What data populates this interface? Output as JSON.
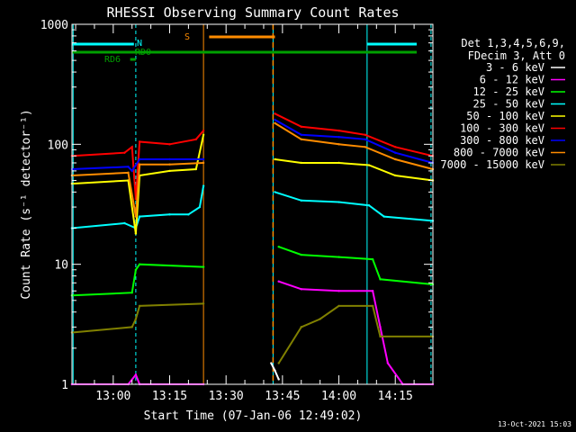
{
  "chart_data": {
    "type": "line",
    "title": "RHESSI Observing Summary Count Rates",
    "xlabel": "Start Time (07-Jan-06 12:49:02)",
    "ylabel": "Count Rate (s⁻¹ detector⁻¹)",
    "yscale": "log",
    "ylim": [
      1,
      1000
    ],
    "xlim": [
      "12:49:02",
      "14:25:00"
    ],
    "x_ticks": [
      "13:00",
      "13:15",
      "13:30",
      "13:45",
      "14:00",
      "14:15"
    ],
    "y_ticks": [
      "1",
      "10",
      "100",
      "1000"
    ],
    "grid": false,
    "legend_position": "right",
    "legend_header": [
      "Det 1,3,4,5,6,9,",
      "FDecim 3, Att 0"
    ],
    "timestamp": "13-Oct-2021 15:03",
    "flags": [
      {
        "label": "N",
        "color": "#00ffff"
      },
      {
        "label": "RD0",
        "color": "#00a000"
      },
      {
        "label": "RD6",
        "color": "#00a000"
      },
      {
        "label": "S",
        "color": "#ff8c00"
      }
    ],
    "series": [
      {
        "name": "3 - 6 keV",
        "color": "#ffffff",
        "times": [
          "13:42",
          "13:43",
          "13:44"
        ],
        "values": [
          1.5,
          1.3,
          1.1
        ]
      },
      {
        "name": "6 - 12 keV",
        "color": "#ff00ff",
        "times": [
          "12:49",
          "13:04",
          "13:06",
          "13:07",
          "13:24",
          "13:42",
          "13:44",
          "13:50",
          "14:00",
          "14:09",
          "14:11",
          "14:13",
          "14:17",
          "14:25"
        ],
        "values": [
          1.0,
          1.0,
          1.2,
          1.0,
          1.0,
          null,
          7.2,
          6.2,
          6.0,
          6.0,
          3.0,
          1.5,
          1.0,
          1.0
        ]
      },
      {
        "name": "12 - 25 keV",
        "color": "#00ff00",
        "times": [
          "12:49",
          "13:05",
          "13:06",
          "13:07",
          "13:24",
          "13:42",
          "13:44",
          "13:50",
          "14:00",
          "14:09",
          "14:11",
          "14:25"
        ],
        "values": [
          5.5,
          5.8,
          9.0,
          10.0,
          9.5,
          null,
          14.0,
          12.0,
          11.5,
          11.0,
          7.5,
          6.8
        ]
      },
      {
        "name": "25 - 50 keV",
        "color": "#00ffff",
        "times": [
          "12:49",
          "13:03",
          "13:06",
          "13:07",
          "13:15",
          "13:20",
          "13:23",
          "13:24",
          "13:42",
          "13:43",
          "13:50",
          "14:00",
          "14:08",
          "14:12",
          "14:25"
        ],
        "values": [
          20,
          22,
          20,
          25,
          26,
          26,
          30,
          45,
          null,
          40,
          34,
          33,
          31,
          25,
          23
        ]
      },
      {
        "name": "50 - 100 keV",
        "color": "#ffff00",
        "times": [
          "12:49",
          "13:04",
          "13:06",
          "13:07",
          "13:15",
          "13:22",
          "13:24",
          "13:42",
          "13:43",
          "13:50",
          "14:00",
          "14:08",
          "14:15",
          "14:25"
        ],
        "values": [
          47,
          50,
          18,
          55,
          60,
          62,
          120,
          null,
          75,
          70,
          70,
          67,
          55,
          50
        ]
      },
      {
        "name": "100 - 300 keV",
        "color": "#ff0000",
        "times": [
          "12:49",
          "13:03",
          "13:05",
          "13:06",
          "13:07",
          "13:15",
          "13:22",
          "13:24",
          "13:42",
          "13:43",
          "13:50",
          "14:00",
          "14:07",
          "14:15",
          "14:25"
        ],
        "values": [
          80,
          85,
          95,
          35,
          105,
          100,
          110,
          130,
          null,
          180,
          140,
          130,
          120,
          95,
          80
        ]
      },
      {
        "name": "300 - 800 keV",
        "color": "#0000ff",
        "times": [
          "12:49",
          "13:04",
          "13:05",
          "13:07",
          "13:15",
          "13:24",
          "13:42",
          "13:43",
          "13:50",
          "14:00",
          "14:07",
          "14:15",
          "14:25"
        ],
        "values": [
          62,
          65,
          60,
          75,
          75,
          75,
          null,
          160,
          120,
          115,
          110,
          85,
          70
        ]
      },
      {
        "name": "800 - 7000 keV",
        "color": "#ff8c00",
        "times": [
          "12:49",
          "13:04",
          "13:06",
          "13:07",
          "13:15",
          "13:24",
          "13:42",
          "13:43",
          "13:50",
          "14:00",
          "14:07",
          "14:15",
          "14:25"
        ],
        "values": [
          55,
          58,
          25,
          68,
          68,
          70,
          null,
          150,
          110,
          100,
          95,
          75,
          62
        ]
      },
      {
        "name": "7000 - 15000 keV",
        "color": "#808000",
        "times": [
          "12:49",
          "13:05",
          "13:06",
          "13:07",
          "13:24",
          "13:42",
          "13:44",
          "13:50",
          "13:55",
          "14:00",
          "14:09",
          "14:11",
          "14:25"
        ],
        "values": [
          2.7,
          3.0,
          3.5,
          4.5,
          4.7,
          null,
          1.5,
          3.0,
          3.5,
          4.5,
          4.5,
          2.5,
          2.5
        ]
      }
    ]
  }
}
